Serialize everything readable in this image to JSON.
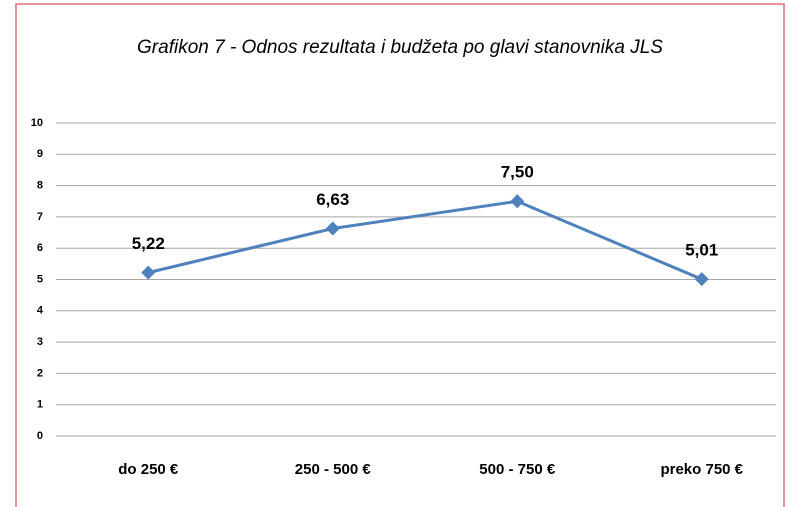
{
  "chart_data": {
    "type": "line",
    "title": "Grafikon 7 - Odnos rezultata i budžeta po glavi stanovnika JLS",
    "categories": [
      "do 250 €",
      "250 - 500 €",
      "500 - 750 €",
      "preko 750 €"
    ],
    "values": [
      5.22,
      6.63,
      7.5,
      5.01
    ],
    "value_labels": [
      "5,22",
      "6,63",
      "7,50",
      "5,01"
    ],
    "color": "#4f81bd",
    "ylim": [
      0,
      10
    ],
    "yticks": [
      0,
      1,
      2,
      3,
      4,
      5,
      6,
      7,
      8,
      9,
      10
    ],
    "grid": true
  }
}
